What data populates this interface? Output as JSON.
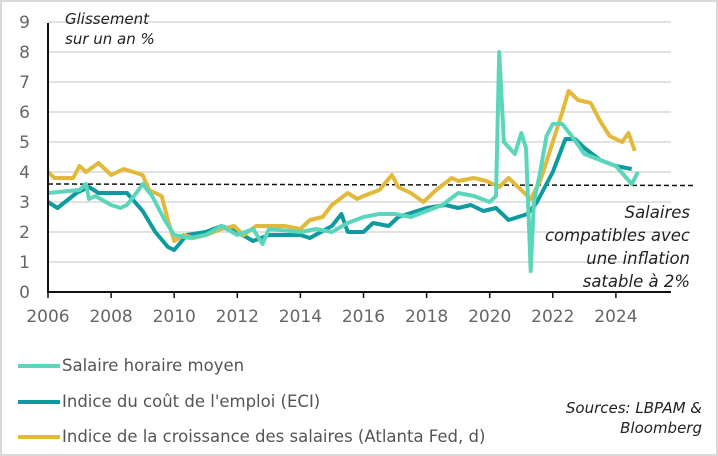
{
  "chart_data": {
    "type": "line",
    "title": "",
    "ylabel": "Glissement sur un an %",
    "xlim": [
      2006,
      2026
    ],
    "ylim": [
      0,
      9
    ],
    "yticks": [
      0,
      1,
      2,
      3,
      4,
      5,
      6,
      7,
      8,
      9
    ],
    "xticks": [
      2006,
      2008,
      2010,
      2012,
      2014,
      2016,
      2018,
      2020,
      2022,
      2024
    ],
    "grid": "horizontal",
    "legend_position": "bottom-left",
    "reference_line": {
      "value": 3.6,
      "style": "dashed",
      "label_lines": [
        "Salaires",
        "compatibles avec",
        "une inflation",
        "satable à 2%"
      ]
    },
    "series": [
      {
        "name": "Salaire horaire moyen",
        "color": "#5cd6bb",
        "x": [
          2006,
          2007,
          2007.2,
          2007.3,
          2007.5,
          2008,
          2008.3,
          2008.5,
          2008.8,
          2009,
          2009.3,
          2009.7,
          2010,
          2010.5,
          2011,
          2011.5,
          2012,
          2012.5,
          2012.8,
          2013,
          2014,
          2014.5,
          2015,
          2015.5,
          2016,
          2016.5,
          2017,
          2017.5,
          2018,
          2018.5,
          2019,
          2019.5,
          2020,
          2020.2,
          2020.3,
          2020.45,
          2020.8,
          2021,
          2021.15,
          2021.3,
          2021.4,
          2021.6,
          2021.8,
          2022,
          2022.3,
          2022.6,
          2023,
          2023.5,
          2024,
          2024.5,
          2024.7
        ],
        "y": [
          3.3,
          3.4,
          3.6,
          3.1,
          3.2,
          2.9,
          2.8,
          2.9,
          3.3,
          3.6,
          3.2,
          2.4,
          1.9,
          1.8,
          1.9,
          2.2,
          1.9,
          2.1,
          1.6,
          2.1,
          2.0,
          2.1,
          2.0,
          2.3,
          2.5,
          2.6,
          2.6,
          2.5,
          2.7,
          2.9,
          3.3,
          3.2,
          3.0,
          3.2,
          8.0,
          5.0,
          4.6,
          5.3,
          4.8,
          0.7,
          3.0,
          4.0,
          5.2,
          5.6,
          5.6,
          5.2,
          4.6,
          4.4,
          4.2,
          3.6,
          4.0
        ]
      },
      {
        "name": "Indice du coût de l'emploi (ECI)",
        "color": "#0e9b9f",
        "x": [
          2006,
          2006.3,
          2006.9,
          2007.3,
          2007.6,
          2008.5,
          2009,
          2009.4,
          2009.8,
          2010,
          2010.4,
          2011,
          2011.5,
          2012,
          2012.5,
          2013,
          2014,
          2014.3,
          2015,
          2015.3,
          2015.5,
          2016,
          2016.3,
          2016.8,
          2017.1,
          2018,
          2018.6,
          2019,
          2019.4,
          2019.8,
          2020.2,
          2020.6,
          2021.2,
          2021.5,
          2022,
          2022.4,
          2022.7,
          2023,
          2023.5,
          2024,
          2024.5
        ],
        "y": [
          3.0,
          2.8,
          3.3,
          3.5,
          3.3,
          3.3,
          2.7,
          2.0,
          1.5,
          1.4,
          1.9,
          2.0,
          2.2,
          2.0,
          1.7,
          1.9,
          1.9,
          1.8,
          2.2,
          2.6,
          2.0,
          2.0,
          2.3,
          2.2,
          2.5,
          2.8,
          2.9,
          2.8,
          2.9,
          2.7,
          2.8,
          2.4,
          2.6,
          3.0,
          4.0,
          5.1,
          5.1,
          4.8,
          4.4,
          4.2,
          4.1
        ]
      },
      {
        "name": "Indice de la croissance des salaires (Atlanta Fed, d)",
        "color": "#e2b93b",
        "x": [
          2006,
          2006.2,
          2006.8,
          2007,
          2007.2,
          2007.6,
          2008,
          2008.4,
          2008.7,
          2009,
          2009.2,
          2009.6,
          2009.8,
          2010,
          2010.3,
          2010.6,
          2011,
          2011.5,
          2011.9,
          2012.2,
          2012.6,
          2013,
          2013.5,
          2014,
          2014.3,
          2014.7,
          2015,
          2015.5,
          2015.8,
          2016,
          2016.5,
          2016.9,
          2017.1,
          2017.5,
          2017.9,
          2018.3,
          2018.8,
          2019,
          2019.5,
          2019.9,
          2020.3,
          2020.6,
          2020.8,
          2021.3,
          2021.6,
          2022,
          2022.3,
          2022.5,
          2022.8,
          2023.2,
          2023.5,
          2023.8,
          2024.2,
          2024.4,
          2024.6
        ],
        "y": [
          4.0,
          3.8,
          3.8,
          4.2,
          4.0,
          4.3,
          3.9,
          4.1,
          4.0,
          3.9,
          3.4,
          3.2,
          2.4,
          1.7,
          1.9,
          1.8,
          1.9,
          2.1,
          2.2,
          1.9,
          2.2,
          2.2,
          2.2,
          2.1,
          2.4,
          2.5,
          2.9,
          3.3,
          3.1,
          3.2,
          3.4,
          3.9,
          3.5,
          3.3,
          3.0,
          3.4,
          3.8,
          3.7,
          3.8,
          3.7,
          3.5,
          3.8,
          3.6,
          3.1,
          3.7,
          5.0,
          6.0,
          6.7,
          6.4,
          6.3,
          5.7,
          5.2,
          5.0,
          5.3,
          4.7
        ]
      }
    ]
  },
  "annotation_title": [
    "Glissement",
    "sur un an %"
  ],
  "sources": [
    "Sources: LBPAM &",
    "Bloomberg"
  ]
}
